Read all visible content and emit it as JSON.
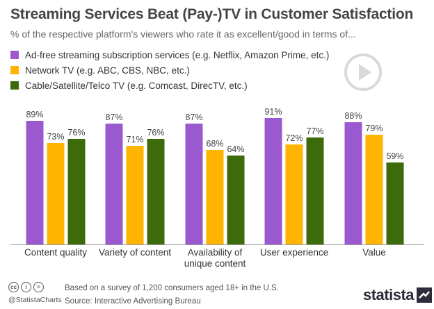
{
  "chart_data": {
    "type": "bar",
    "title": "Streaming Services Beat (Pay-)TV in Customer Satisfaction",
    "subtitle": "% of the respective platform's viewers who rate it as excellent/good in terms of...",
    "categories": [
      "Content quality",
      "Variety of content",
      "Availability of unique content",
      "User experience",
      "Value"
    ],
    "category_lines": [
      [
        "Content quality"
      ],
      [
        "Variety of content"
      ],
      [
        "Availability of",
        "unique content"
      ],
      [
        "User experience"
      ],
      [
        "Value"
      ]
    ],
    "series": [
      {
        "name": "Ad-free streaming subscription services (e.g. Netflix, Amazon Prime, etc.)",
        "color": "#9b59d0",
        "values": [
          89,
          87,
          87,
          91,
          88
        ]
      },
      {
        "name": "Network TV (e.g. ABC, CBS, NBC, etc.)",
        "color": "#ffb400",
        "values": [
          73,
          71,
          68,
          72,
          79
        ]
      },
      {
        "name": "Cable/Satellite/Telco TV (e.g. Comcast, DirecTV, etc.)",
        "color": "#3d6b0c",
        "values": [
          76,
          76,
          64,
          77,
          59
        ]
      }
    ],
    "value_suffix": "%",
    "ylim": [
      0,
      100
    ],
    "legend_position": "top-left",
    "grid": false
  },
  "footer": {
    "note": "Based on a survey of 1,200 consumers aged 18+ in the U.S.",
    "source": "Source: Interactive Advertising Bureau",
    "handle": "@StatistaCharts",
    "brand": "statista",
    "cc_icons": [
      "cc",
      "i",
      "="
    ]
  },
  "icons": {
    "play": "play-icon",
    "license": "creative-commons-icon"
  }
}
